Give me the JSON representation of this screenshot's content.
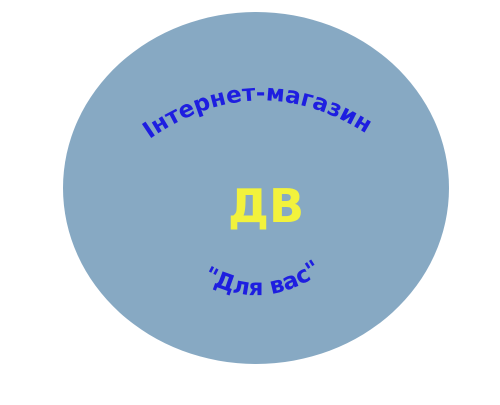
{
  "logo": {
    "top_arc_text": "Інтернет-магазин",
    "center_text": "ДВ",
    "bottom_arc_text": "\"Для вас\""
  },
  "colors": {
    "background": "#ffffff",
    "circle_fill": "#87a9c3",
    "arc_text_color": "#1e1ee0",
    "center_text_color": "#f2f23c"
  }
}
